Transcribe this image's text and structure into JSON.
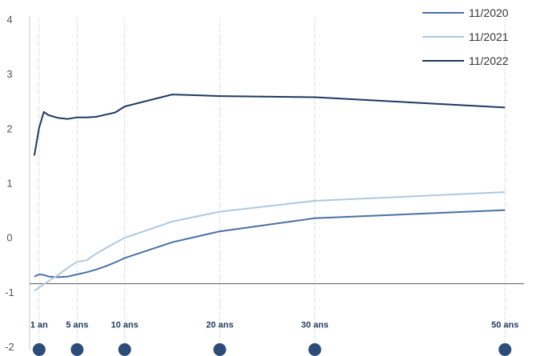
{
  "chart_data": {
    "type": "line",
    "title": "",
    "xlabel": "",
    "ylabel": "",
    "ylim": [
      -2,
      4
    ],
    "yticks": [
      "4",
      "3",
      "2",
      "1",
      "0",
      "-1",
      "-2"
    ],
    "xticks": [
      {
        "x": 1,
        "label": "1 an"
      },
      {
        "x": 5,
        "label": "5 ans"
      },
      {
        "x": 10,
        "label": "10 ans"
      },
      {
        "x": 20,
        "label": "20 ans"
      },
      {
        "x": 30,
        "label": "30 ans"
      },
      {
        "x": 50,
        "label": "50 ans"
      }
    ],
    "x_label_row_y": -1.6,
    "grid": "vertical dotted at labeled maturities",
    "legend_position": "top-right",
    "series": [
      {
        "name": "11/2020",
        "color": "#4a70a3",
        "x": [
          0.5,
          1,
          1.5,
          2,
          3,
          4,
          5,
          6,
          7,
          8,
          9,
          10,
          15,
          20,
          30,
          50
        ],
        "y": [
          -0.72,
          -0.68,
          -0.69,
          -0.72,
          -0.73,
          -0.72,
          -0.68,
          -0.64,
          -0.59,
          -0.53,
          -0.46,
          -0.38,
          -0.09,
          0.11,
          0.35,
          0.5
        ]
      },
      {
        "name": "11/2021",
        "color": "#afc8e0",
        "x": [
          0.5,
          1,
          1.5,
          2,
          3,
          4,
          5,
          6,
          7,
          8,
          9,
          10,
          15,
          20,
          30,
          50
        ],
        "y": [
          -0.98,
          -0.92,
          -0.86,
          -0.8,
          -0.69,
          -0.56,
          -0.45,
          -0.42,
          -0.3,
          -0.2,
          -0.1,
          -0.01,
          0.29,
          0.47,
          0.67,
          0.83
        ]
      },
      {
        "name": "11/2022",
        "color": "#1f3a5f",
        "x": [
          0.5,
          1,
          1.5,
          2,
          3,
          4,
          5,
          6,
          7,
          8,
          9,
          10,
          15,
          20,
          30,
          50
        ],
        "y": [
          1.5,
          2.01,
          2.3,
          2.24,
          2.19,
          2.17,
          2.2,
          2.2,
          2.21,
          2.25,
          2.29,
          2.4,
          2.62,
          2.59,
          2.57,
          2.38
        ]
      }
    ]
  }
}
